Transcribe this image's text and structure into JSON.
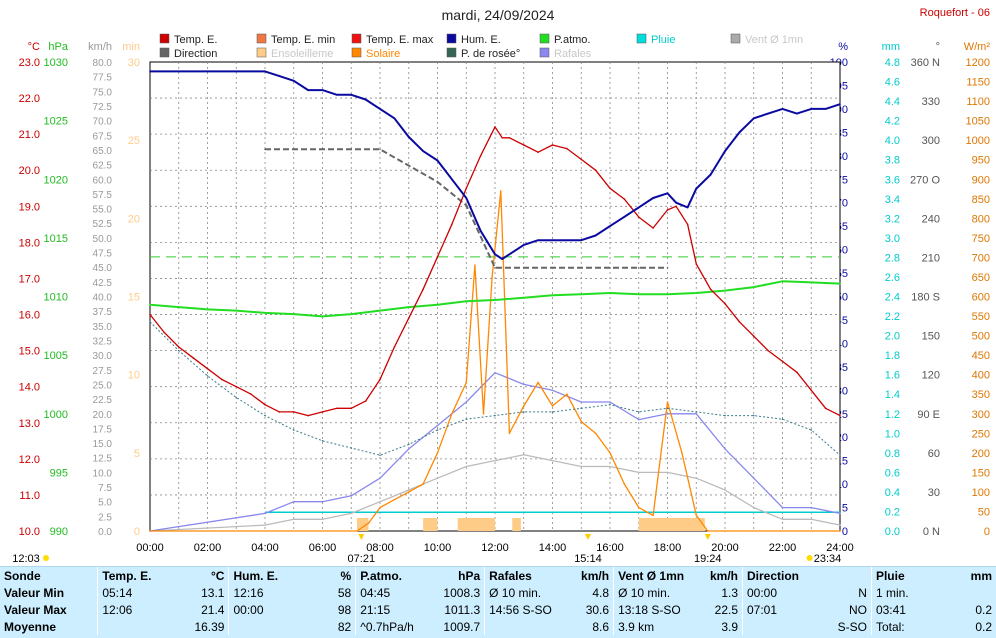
{
  "title": "mardi, 24/09/2024",
  "station": "Roquefort - 06",
  "colors": {
    "temp": "#cc0000",
    "dew": "#3d7a8a",
    "pressure": "#22dd22",
    "humidity": "#0a0aa0",
    "gusts": "#8888ee",
    "wind": "#bbbbbb",
    "solar": "#ff8800",
    "rain": "#00cccc",
    "direction": "#666666",
    "sunshine": "#ffcc88"
  },
  "legend": [
    {
      "label": "Temp. E.",
      "color": "#cc0000",
      "muted": false
    },
    {
      "label": "Temp. E. min",
      "color": "#ee7744",
      "muted": false
    },
    {
      "label": "Temp. E. max",
      "color": "#ee1111",
      "muted": false
    },
    {
      "label": "Hum. E.",
      "color": "#0a0aa0",
      "muted": false
    },
    {
      "label": "P.atmo.",
      "color": "#22dd22",
      "muted": false
    },
    {
      "label": "Pluie",
      "color": "#00dddd",
      "muted": false
    },
    {
      "label": "Vent Ø 1mn",
      "color": "#aaaaaa",
      "muted": true
    },
    {
      "label": "Direction",
      "color": "#666666",
      "muted": false
    },
    {
      "label": "Ensoleilleme",
      "color": "#ffcc88",
      "muted": true
    },
    {
      "label": "Solaire",
      "color": "#ff8800",
      "muted": false
    },
    {
      "label": "P. de rosée°",
      "color": "#336655",
      "muted": false
    },
    {
      "label": "Rafales",
      "color": "#8888ee",
      "muted": true
    }
  ],
  "left_axes": [
    {
      "unit": "°C",
      "color": "#cc0000",
      "ticks": [
        "23.0",
        "22.0",
        "21.0",
        "20.0",
        "19.0",
        "18.0",
        "17.0",
        "16.0",
        "15.0",
        "14.0",
        "13.0",
        "12.0",
        "11.0",
        "10.0"
      ]
    },
    {
      "unit": "hPa",
      "color": "#22bb22",
      "ticks": [
        "1030",
        "1025",
        "1020",
        "1015",
        "1010",
        "1005",
        "1000",
        "995",
        "990"
      ]
    },
    {
      "unit": "km/h",
      "color": "#999999",
      "ticks": [
        "80.0",
        "77.5",
        "75.0",
        "72.5",
        "70.0",
        "67.5",
        "65.0",
        "62.5",
        "60.0",
        "57.5",
        "55.0",
        "52.5",
        "50.0",
        "47.5",
        "45.0",
        "42.5",
        "40.0",
        "37.5",
        "35.0",
        "32.5",
        "30.0",
        "27.5",
        "25.0",
        "22.5",
        "20.0",
        "17.5",
        "15.0",
        "12.5",
        "10.0",
        "7.5",
        "5.0",
        "2.5",
        "0.0"
      ]
    },
    {
      "unit": "min",
      "color": "#ffcc88",
      "ticks": [
        "30",
        "25",
        "20",
        "15",
        "10",
        "5",
        "0"
      ]
    }
  ],
  "right_axes": [
    {
      "unit": "%",
      "color": "#0a0aa0",
      "ticks": [
        "100",
        "95",
        "90",
        "85",
        "80",
        "75",
        "70",
        "65",
        "60",
        "55",
        "50",
        "45",
        "40",
        "35",
        "30",
        "25",
        "20",
        "15",
        "10",
        "5",
        "0"
      ]
    },
    {
      "unit": "mm",
      "color": "#00cccc",
      "ticks": [
        "4.8",
        "4.6",
        "4.4",
        "4.2",
        "4.0",
        "3.8",
        "3.6",
        "3.4",
        "3.2",
        "3.0",
        "2.8",
        "2.6",
        "2.4",
        "2.2",
        "2.0",
        "1.8",
        "1.6",
        "1.4",
        "1.2",
        "1.0",
        "0.8",
        "0.6",
        "0.4",
        "0.2",
        "0.0"
      ]
    },
    {
      "unit": "°",
      "color": "#555555",
      "ticks": [
        "360 N",
        "330",
        "300",
        "270 O",
        "240",
        "210",
        "180 S",
        "150",
        "120",
        "90 E",
        "60",
        "30",
        "0 N"
      ]
    },
    {
      "unit": "W/m²",
      "color": "#dd7700",
      "ticks": [
        "1200",
        "1150",
        "1100",
        "1050",
        "1000",
        "950",
        "900",
        "850",
        "800",
        "750",
        "700",
        "650",
        "600",
        "550",
        "500",
        "450",
        "400",
        "350",
        "300",
        "250",
        "200",
        "150",
        "100",
        "50",
        "0"
      ]
    }
  ],
  "x_ticks": [
    "00:00",
    "02:00",
    "04:00",
    "06:00",
    "08:00",
    "10:00",
    "12:00",
    "14:00",
    "16:00",
    "18:00",
    "20:00",
    "22:00",
    "24:00"
  ],
  "sun_markers": [
    {
      "time": "07:21",
      "kind": "sunrise"
    },
    {
      "time": "15:14",
      "kind": "solar noon"
    },
    {
      "time": "19:24",
      "kind": "sunset"
    }
  ],
  "moon_markers": [
    {
      "time": "12:03",
      "kind": "moonset"
    },
    {
      "time": "23:34",
      "kind": "moonrise"
    }
  ],
  "chart_data": {
    "type": "line",
    "title": "mardi, 24/09/2024",
    "xlabel": "",
    "ylabel": "",
    "x_range_hours": [
      0,
      24
    ],
    "grid": true,
    "legend_position": "top",
    "axes_ranges": {
      "temp_c": [
        10,
        23
      ],
      "pressure_hpa": [
        990,
        1030
      ],
      "wind_kmh": [
        0,
        80
      ],
      "sunshine_min": [
        0,
        30
      ],
      "humidity_pct": [
        0,
        100
      ],
      "rain_mm": [
        0,
        5
      ],
      "direction_deg": [
        0,
        360
      ],
      "solar_wm2": [
        0,
        1200
      ]
    },
    "series": [
      {
        "name": "Temp. E.",
        "axis": "temp_c",
        "x": [
          0,
          0.5,
          1,
          1.5,
          2,
          2.5,
          3,
          3.5,
          4,
          4.5,
          5,
          5.5,
          6,
          6.5,
          7,
          7.5,
          8,
          8.5,
          9,
          9.5,
          10,
          10.5,
          11,
          11.5,
          12,
          12.25,
          12.5,
          13,
          13.5,
          14,
          14.5,
          15,
          15.5,
          16,
          16.5,
          17,
          17.5,
          18,
          18.3,
          18.7,
          19,
          19.5,
          20,
          20.5,
          21,
          21.5,
          22,
          22.5,
          23,
          23.5,
          24
        ],
        "y": [
          16.0,
          15.5,
          15.1,
          14.8,
          14.5,
          14.2,
          14.0,
          13.8,
          13.5,
          13.3,
          13.3,
          13.2,
          13.3,
          13.4,
          13.4,
          13.6,
          14.2,
          15.1,
          15.9,
          16.7,
          17.6,
          18.5,
          19.5,
          20.4,
          21.2,
          20.9,
          20.9,
          20.7,
          20.5,
          20.7,
          20.6,
          20.3,
          20.0,
          19.5,
          19.2,
          18.7,
          18.4,
          18.9,
          19.0,
          18.5,
          17.4,
          16.7,
          16.3,
          15.8,
          15.4,
          15.0,
          14.7,
          14.4,
          13.9,
          13.4,
          13.2
        ]
      },
      {
        "name": "P. de rosée°",
        "axis": "temp_c",
        "x": [
          0,
          1,
          2,
          3,
          4,
          5,
          6,
          7,
          8,
          9,
          10,
          11,
          12,
          13,
          14,
          15,
          16,
          17,
          18,
          19,
          20,
          21,
          22,
          23,
          24
        ],
        "y": [
          15.8,
          15.0,
          14.3,
          13.7,
          13.2,
          12.8,
          12.5,
          12.3,
          12.1,
          12.4,
          12.8,
          13.1,
          13.2,
          13.3,
          13.3,
          13.4,
          13.5,
          13.3,
          13.4,
          13.3,
          13.2,
          13.2,
          13.1,
          12.8,
          12.1
        ]
      },
      {
        "name": "P.atmo.",
        "axis": "pressure_hpa",
        "x": [
          0,
          1,
          2,
          3,
          4,
          5,
          6,
          7,
          8,
          9,
          10,
          11,
          12,
          13,
          14,
          15,
          16,
          17,
          18,
          19,
          20,
          21,
          22,
          23,
          24
        ],
        "y": [
          1009.3,
          1009.1,
          1008.9,
          1008.8,
          1008.6,
          1008.5,
          1008.3,
          1008.5,
          1008.8,
          1009.1,
          1009.3,
          1009.6,
          1009.7,
          1009.9,
          1010.1,
          1010.2,
          1010.3,
          1010.2,
          1010.2,
          1010.3,
          1010.5,
          1010.8,
          1011.3,
          1011.2,
          1011.1
        ]
      },
      {
        "name": "Hum. E.",
        "axis": "humidity_pct",
        "x": [
          0,
          1,
          2,
          3,
          3.5,
          4,
          4.5,
          5,
          5.5,
          6,
          6.5,
          7,
          7.5,
          8,
          8.5,
          9,
          9.5,
          10,
          10.5,
          11,
          11.5,
          12,
          12.25,
          12.5,
          13,
          13.5,
          14,
          14.5,
          15,
          15.5,
          16,
          16.5,
          17,
          17.5,
          18,
          18.3,
          18.7,
          19,
          19.5,
          20,
          20.5,
          21,
          21.5,
          22,
          22.5,
          23,
          23.5,
          24
        ],
        "y": [
          98,
          98,
          98,
          98,
          98,
          98,
          97,
          96,
          94,
          94,
          93,
          93,
          92,
          90,
          88,
          84,
          81,
          79,
          75,
          71,
          64,
          59,
          58,
          59,
          61,
          62,
          62,
          62,
          62,
          63,
          65,
          67,
          69,
          71,
          72,
          70,
          69,
          73,
          76,
          81,
          85,
          88,
          89,
          90,
          89,
          90,
          90,
          91
        ]
      },
      {
        "name": "Rafales",
        "axis": "wind_kmh",
        "x": [
          0,
          4,
          5,
          6,
          7,
          8,
          9,
          10,
          11,
          12,
          13,
          14,
          15,
          16,
          17,
          18,
          19,
          20,
          21,
          22,
          23,
          24
        ],
        "y": [
          0,
          3,
          5,
          5,
          6,
          9,
          14,
          18,
          22,
          27,
          25,
          24,
          22,
          22,
          19,
          20,
          20,
          14,
          9,
          4,
          4,
          3
        ]
      },
      {
        "name": "Vent Ø 1mn",
        "axis": "wind_kmh",
        "x": [
          0,
          4,
          5,
          6,
          7,
          8,
          9,
          10,
          11,
          12,
          13,
          14,
          15,
          16,
          17,
          18,
          19,
          20,
          21,
          22,
          23,
          24
        ],
        "y": [
          0,
          1,
          2,
          2,
          3,
          5,
          7,
          9,
          11,
          12,
          13,
          12,
          11,
          11,
          10,
          10,
          9,
          7,
          4,
          2,
          2,
          1
        ]
      },
      {
        "name": "Solaire",
        "axis": "solar_wm2",
        "x": [
          0,
          7.2,
          7.6,
          8,
          8.5,
          9,
          9.5,
          10,
          10.5,
          11,
          11.3,
          11.6,
          11.9,
          12.2,
          12.5,
          13,
          13.5,
          14,
          14.5,
          15,
          15.5,
          16,
          16.5,
          17,
          17.5,
          18,
          18.5,
          19,
          19.4,
          20,
          24
        ],
        "y": [
          0,
          0,
          20,
          60,
          80,
          100,
          120,
          200,
          300,
          380,
          680,
          300,
          650,
          870,
          250,
          320,
          380,
          320,
          350,
          280,
          250,
          200,
          120,
          60,
          40,
          330,
          200,
          40,
          0,
          0,
          0
        ]
      },
      {
        "name": "Direction",
        "axis": "direction_deg",
        "x": [
          4,
          6,
          8,
          10,
          11,
          12,
          13,
          14,
          15,
          16,
          17,
          18
        ],
        "y": [
          293,
          293,
          293,
          268,
          250,
          202,
          202,
          202,
          202,
          202,
          202,
          202
        ]
      }
    ],
    "rain_level_mm": 0.0,
    "bands": [
      {
        "name": "Pluie baseline",
        "axis": "rain_mm",
        "value": 0.2,
        "from": 4.0,
        "to": 24.0
      }
    ],
    "sunshine_blocks": [
      {
        "from": 7.2,
        "to": 7.6
      },
      {
        "from": 9.5,
        "to": 10.0
      },
      {
        "from": 10.7,
        "to": 12.0
      },
      {
        "from": 12.6,
        "to": 12.9
      },
      {
        "from": 17.0,
        "to": 19.3
      }
    ],
    "reference_line": {
      "axis": "temp_c",
      "value": 17.6,
      "style": "dashed"
    }
  },
  "summary": {
    "headers": [
      [
        "Sonde",
        "",
        ""
      ],
      [
        "Temp. E.",
        "",
        "°C"
      ],
      [
        "Hum. E.",
        "",
        "%"
      ],
      [
        "P.atmo.",
        "",
        "hPa"
      ],
      [
        "Rafales",
        "",
        "km/h"
      ],
      [
        "Vent Ø 1mn",
        "",
        "km/h"
      ],
      [
        "Direction",
        "",
        ""
      ],
      [
        "Pluie",
        "",
        "mm"
      ]
    ],
    "rows": [
      {
        "label": "Valeur Min",
        "cells": [
          [
            "05:14",
            "13.1"
          ],
          [
            "12:16",
            "58"
          ],
          [
            "04:45",
            "1008.3"
          ],
          [
            "Ø 10 min.",
            "4.8"
          ],
          [
            "Ø 10 min.",
            "1.3"
          ],
          [
            "00:00",
            "N"
          ],
          [
            "1 min.",
            ""
          ]
        ]
      },
      {
        "label": "Valeur Max",
        "cells": [
          [
            "12:06",
            "21.4"
          ],
          [
            "00:00",
            "98"
          ],
          [
            "21:15",
            "1011.3"
          ],
          [
            "14:56   S-SO",
            "30.6"
          ],
          [
            "13:18   S-SO",
            "22.5"
          ],
          [
            "07:01",
            "NO"
          ],
          [
            "03:41",
            "0.2"
          ]
        ]
      },
      {
        "label": "Moyenne",
        "cells": [
          [
            "",
            "16.39"
          ],
          [
            "",
            "82"
          ],
          [
            "^0.7hPa/h",
            "1009.7"
          ],
          [
            "",
            "8.6"
          ],
          [
            "3.9 km",
            "3.9"
          ],
          [
            "",
            "S-SO"
          ],
          [
            "Total:",
            "0.2"
          ]
        ]
      }
    ]
  }
}
